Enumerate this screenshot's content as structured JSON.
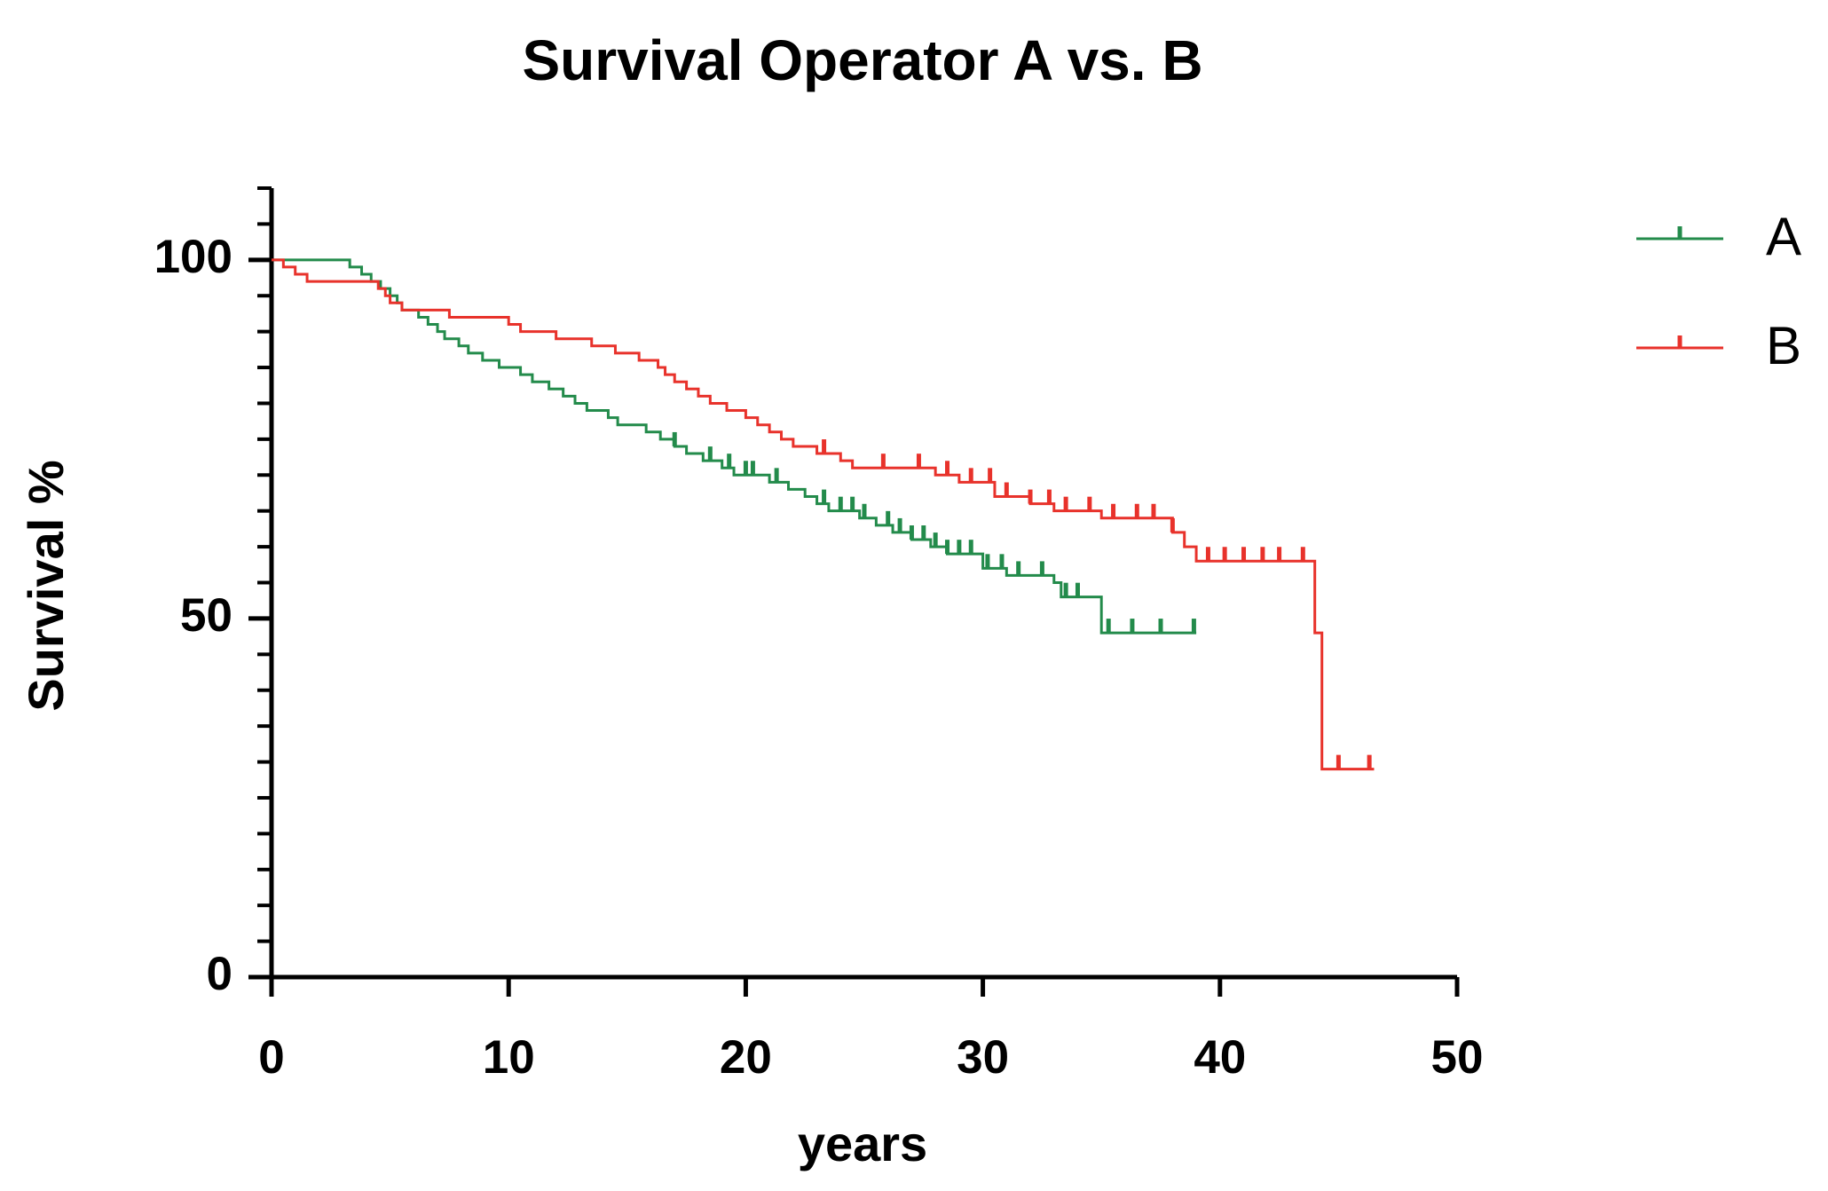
{
  "chart_data": {
    "type": "survival",
    "title": "Survival Operator A vs. B",
    "x_label": "years",
    "y_label": "Survival %",
    "xlim": [
      0,
      50
    ],
    "xticks": [
      0,
      10,
      20,
      30,
      40,
      50
    ],
    "ylim": [
      0,
      110
    ],
    "yticks": [
      0,
      50,
      100
    ],
    "minor_yticks": [
      5,
      10,
      15,
      20,
      25,
      30,
      35,
      40,
      45,
      55,
      60,
      65,
      70,
      75,
      80,
      85,
      90,
      95,
      105,
      110
    ],
    "legend": "top-right",
    "series": [
      {
        "name": "A",
        "color": "#238b4b",
        "x": [
          0,
          3.3,
          3.8,
          4.2,
          4.6,
          5.0,
          5.3,
          5.5,
          6.2,
          6.6,
          7.0,
          7.3,
          7.9,
          8.3,
          8.9,
          9.6,
          10.5,
          11.0,
          11.7,
          12.3,
          12.8,
          13.3,
          14.2,
          14.6,
          15.8,
          16.4,
          17.0,
          17.5,
          18.2,
          19.0,
          19.5,
          21.0,
          21.8,
          22.5,
          23.0,
          23.5,
          24.8,
          25.5,
          26.2,
          27.0,
          27.8,
          28.5,
          30.0,
          31.0,
          33.0,
          33.3,
          35.0,
          39.0
        ],
        "values": [
          100,
          99,
          98,
          97,
          96,
          95,
          94,
          93,
          92,
          91,
          90,
          89,
          88,
          87,
          86,
          85,
          84,
          83,
          82,
          81,
          80,
          79,
          78,
          77,
          76,
          75,
          74,
          73,
          72,
          71,
          70,
          69,
          68,
          67,
          66,
          65,
          64,
          63,
          62,
          61,
          60,
          59,
          57,
          56,
          55,
          53,
          48,
          48
        ],
        "censored": [
          17.0,
          18.5,
          19.3,
          20.0,
          20.3,
          21.3,
          23.3,
          24.0,
          24.5,
          25.0,
          26.0,
          26.5,
          27.0,
          27.5,
          28.0,
          28.5,
          29.0,
          29.5,
          30.2,
          30.8,
          31.5,
          32.5,
          33.5,
          34.0,
          35.3,
          36.3,
          37.5,
          38.9
        ]
      },
      {
        "name": "B",
        "color": "#e8322b",
        "x": [
          0,
          0.5,
          1.0,
          1.5,
          4.5,
          4.8,
          5.0,
          5.5,
          7.5,
          10.0,
          10.5,
          12.0,
          13.5,
          14.5,
          15.5,
          16.3,
          16.6,
          17.0,
          17.5,
          18.0,
          18.5,
          19.2,
          20.0,
          20.5,
          21.0,
          21.5,
          22.0,
          23.0,
          24.0,
          24.5,
          28.0,
          29.0,
          30.5,
          32.0,
          33.0,
          35.0,
          38.0,
          38.5,
          39.0,
          44.0,
          44.3,
          46.5
        ],
        "values": [
          100,
          99,
          98,
          97,
          96,
          95,
          94,
          93,
          92,
          91,
          90,
          89,
          88,
          87,
          86,
          85,
          84,
          83,
          82,
          81,
          80,
          79,
          78,
          77,
          76,
          75,
          74,
          73,
          72,
          71,
          70,
          69,
          67,
          66,
          65,
          64,
          62,
          60,
          58,
          48,
          29,
          29
        ],
        "censored": [
          23.3,
          25.8,
          27.3,
          28.5,
          29.5,
          30.3,
          31.0,
          32.0,
          32.8,
          33.5,
          34.5,
          35.5,
          36.5,
          37.2,
          38.0,
          39.5,
          40.2,
          41.0,
          41.8,
          42.5,
          43.5,
          45.0,
          46.3
        ]
      }
    ]
  }
}
